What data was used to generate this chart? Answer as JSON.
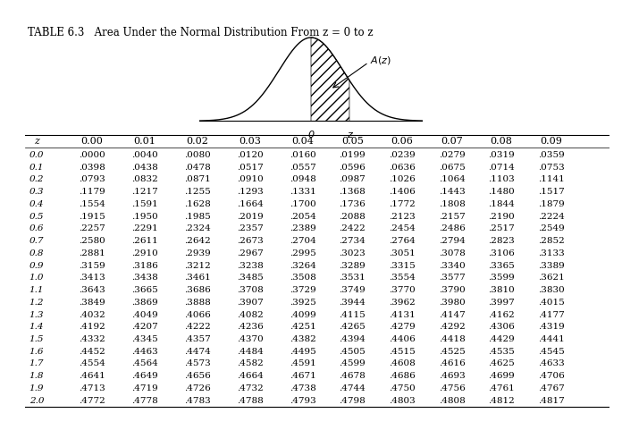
{
  "title": "TABLE 6.3   Area Under the Normal Distribution From z = 0 to z",
  "col_headers": [
    "z",
    "0.00",
    "0.01",
    "0.02",
    "0.03",
    "0.04",
    "0.05",
    "0.06",
    "0.07",
    "0.08",
    "0.09"
  ],
  "rows": [
    [
      "0.0",
      ".0000",
      ".0040",
      ".0080",
      ".0120",
      ".0160",
      ".0199",
      ".0239",
      ".0279",
      ".0319",
      ".0359"
    ],
    [
      "0.1",
      ".0398",
      ".0438",
      ".0478",
      ".0517",
      ".0557",
      ".0596",
      ".0636",
      ".0675",
      ".0714",
      ".0753"
    ],
    [
      "0.2",
      ".0793",
      ".0832",
      ".0871",
      ".0910",
      ".0948",
      ".0987",
      ".1026",
      ".1064",
      ".1103",
      ".1141"
    ],
    [
      "0.3",
      ".1179",
      ".1217",
      ".1255",
      ".1293",
      ".1331",
      ".1368",
      ".1406",
      ".1443",
      ".1480",
      ".1517"
    ],
    [
      "0.4",
      ".1554",
      ".1591",
      ".1628",
      ".1664",
      ".1700",
      ".1736",
      ".1772",
      ".1808",
      ".1844",
      ".1879"
    ],
    [
      "0.5",
      ".1915",
      ".1950",
      ".1985",
      ".2019",
      ".2054",
      ".2088",
      ".2123",
      ".2157",
      ".2190",
      ".2224"
    ],
    [
      "0.6",
      ".2257",
      ".2291",
      ".2324",
      ".2357",
      ".2389",
      ".2422",
      ".2454",
      ".2486",
      ".2517",
      ".2549"
    ],
    [
      "0.7",
      ".2580",
      ".2611",
      ".2642",
      ".2673",
      ".2704",
      ".2734",
      ".2764",
      ".2794",
      ".2823",
      ".2852"
    ],
    [
      "0.8",
      ".2881",
      ".2910",
      ".2939",
      ".2967",
      ".2995",
      ".3023",
      ".3051",
      ".3078",
      ".3106",
      ".3133"
    ],
    [
      "0.9",
      ".3159",
      ".3186",
      ".3212",
      ".3238",
      ".3264",
      ".3289",
      ".3315",
      ".3340",
      ".3365",
      ".3389"
    ],
    [
      "1.0",
      ".3413",
      ".3438",
      ".3461",
      ".3485",
      ".3508",
      ".3531",
      ".3554",
      ".3577",
      ".3599",
      ".3621"
    ],
    [
      "1.1",
      ".3643",
      ".3665",
      ".3686",
      ".3708",
      ".3729",
      ".3749",
      ".3770",
      ".3790",
      ".3810",
      ".3830"
    ],
    [
      "1.2",
      ".3849",
      ".3869",
      ".3888",
      ".3907",
      ".3925",
      ".3944",
      ".3962",
      ".3980",
      ".3997",
      ".4015"
    ],
    [
      "1.3",
      ".4032",
      ".4049",
      ".4066",
      ".4082",
      ".4099",
      ".4115",
      ".4131",
      ".4147",
      ".4162",
      ".4177"
    ],
    [
      "1.4",
      ".4192",
      ".4207",
      ".4222",
      ".4236",
      ".4251",
      ".4265",
      ".4279",
      ".4292",
      ".4306",
      ".4319"
    ],
    [
      "1.5",
      ".4332",
      ".4345",
      ".4357",
      ".4370",
      ".4382",
      ".4394",
      ".4406",
      ".4418",
      ".4429",
      ".4441"
    ],
    [
      "1.6",
      ".4452",
      ".4463",
      ".4474",
      ".4484",
      ".4495",
      ".4505",
      ".4515",
      ".4525",
      ".4535",
      ".4545"
    ],
    [
      "1.7",
      ".4554",
      ".4564",
      ".4573",
      ".4582",
      ".4591",
      ".4599",
      ".4608",
      ".4616",
      ".4625",
      ".4633"
    ],
    [
      "1.8",
      ".4641",
      ".4649",
      ".4656",
      ".4664",
      ".4671",
      ".4678",
      ".4686",
      ".4693",
      ".4699",
      ".4706"
    ],
    [
      "1.9",
      ".4713",
      ".4719",
      ".4726",
      ".4732",
      ".4738",
      ".4744",
      ".4750",
      ".4756",
      ".4761",
      ".4767"
    ],
    [
      "2.0",
      ".4772",
      ".4778",
      ".4783",
      ".4788",
      ".4793",
      ".4798",
      ".4803",
      ".4808",
      ".4812",
      ".4817"
    ]
  ],
  "bg_color": "#ffffff",
  "text_color": "#000000",
  "font_size": 7.5,
  "header_font_size": 8.0,
  "title_font_size": 8.5
}
